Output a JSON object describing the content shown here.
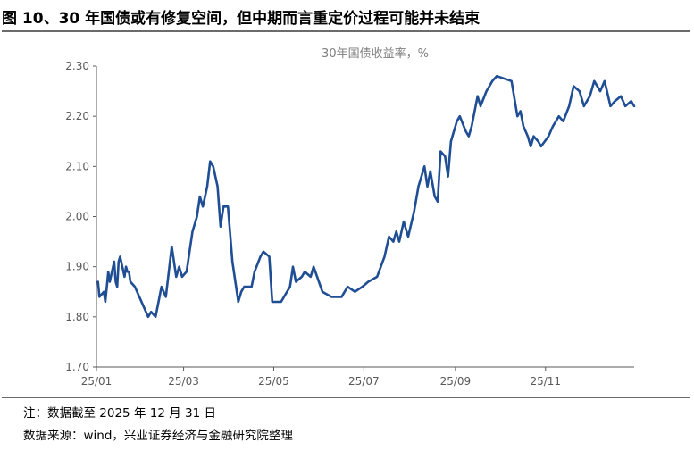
{
  "header": {
    "title": "图 10、30 年国债或有修复空间，但中期而言重定价过程可能并未结束"
  },
  "footer": {
    "note": "注：数据截至 2025 年 12 月 31 日",
    "source": "数据来源：wind，兴业证券经济与金融研究院整理"
  },
  "colors": {
    "line": "#1f4e94",
    "axis": "#595959",
    "text": "#595959",
    "legend_text": "#7f7f7f"
  },
  "chart_data": {
    "type": "line",
    "title": "",
    "legend": [
      "30年国债收益率，%"
    ],
    "legend_position": "top-center",
    "grid": false,
    "xlabel": "",
    "ylabel": "",
    "ylim": [
      1.7,
      2.3
    ],
    "yticks": [
      "1.70",
      "1.80",
      "1.90",
      "2.00",
      "2.10",
      "2.20",
      "2.30"
    ],
    "xticks": [
      "25/01",
      "25/03",
      "25/05",
      "25/07",
      "25/09",
      "25/11"
    ],
    "xlim": [
      "2025-01-01",
      "2025-12-31"
    ],
    "series": [
      {
        "name": "30年国债收益率，%",
        "x": [
          "2025-01-02",
          "2025-01-03",
          "2025-01-06",
          "2025-01-07",
          "2025-01-08",
          "2025-01-09",
          "2025-01-10",
          "2025-01-13",
          "2025-01-14",
          "2025-01-15",
          "2025-01-16",
          "2025-01-17",
          "2025-01-20",
          "2025-01-21",
          "2025-01-22",
          "2025-01-23",
          "2025-01-24",
          "2025-01-27",
          "2025-02-05",
          "2025-02-07",
          "2025-02-10",
          "2025-02-12",
          "2025-02-14",
          "2025-02-17",
          "2025-02-19",
          "2025-02-21",
          "2025-02-24",
          "2025-02-26",
          "2025-02-28",
          "2025-03-03",
          "2025-03-05",
          "2025-03-07",
          "2025-03-10",
          "2025-03-12",
          "2025-03-14",
          "2025-03-17",
          "2025-03-19",
          "2025-03-21",
          "2025-03-24",
          "2025-03-26",
          "2025-03-28",
          "2025-03-31",
          "2025-04-03",
          "2025-04-07",
          "2025-04-09",
          "2025-04-11",
          "2025-04-14",
          "2025-04-16",
          "2025-04-18",
          "2025-04-22",
          "2025-04-24",
          "2025-04-28",
          "2025-04-30",
          "2025-05-06",
          "2025-05-08",
          "2025-05-12",
          "2025-05-14",
          "2025-05-16",
          "2025-05-20",
          "2025-05-22",
          "2025-05-26",
          "2025-05-28",
          "2025-06-03",
          "2025-06-09",
          "2025-06-16",
          "2025-06-20",
          "2025-06-25",
          "2025-06-30",
          "2025-07-04",
          "2025-07-10",
          "2025-07-15",
          "2025-07-18",
          "2025-07-21",
          "2025-07-23",
          "2025-07-25",
          "2025-07-28",
          "2025-07-31",
          "2025-08-04",
          "2025-08-07",
          "2025-08-11",
          "2025-08-13",
          "2025-08-15",
          "2025-08-18",
          "2025-08-20",
          "2025-08-22",
          "2025-08-25",
          "2025-08-27",
          "2025-08-29",
          "2025-09-02",
          "2025-09-04",
          "2025-09-08",
          "2025-09-10",
          "2025-09-12",
          "2025-09-16",
          "2025-09-18",
          "2025-09-22",
          "2025-09-24",
          "2025-09-26",
          "2025-09-29",
          "2025-10-09",
          "2025-10-13",
          "2025-10-15",
          "2025-10-17",
          "2025-10-20",
          "2025-10-22",
          "2025-10-24",
          "2025-10-27",
          "2025-10-29",
          "2025-11-03",
          "2025-11-06",
          "2025-11-10",
          "2025-11-13",
          "2025-11-17",
          "2025-11-20",
          "2025-11-24",
          "2025-11-27",
          "2025-12-01",
          "2025-12-04",
          "2025-12-08",
          "2025-12-11",
          "2025-12-15",
          "2025-12-18",
          "2025-12-22",
          "2025-12-25",
          "2025-12-29",
          "2025-12-31"
        ],
        "y": [
          1.87,
          1.84,
          1.85,
          1.83,
          1.86,
          1.89,
          1.87,
          1.91,
          1.87,
          1.86,
          1.91,
          1.92,
          1.88,
          1.9,
          1.89,
          1.89,
          1.87,
          1.86,
          1.8,
          1.81,
          1.8,
          1.83,
          1.86,
          1.84,
          1.89,
          1.94,
          1.88,
          1.9,
          1.88,
          1.89,
          1.93,
          1.97,
          2.0,
          2.04,
          2.02,
          2.06,
          2.11,
          2.1,
          2.06,
          1.98,
          2.02,
          2.02,
          1.91,
          1.83,
          1.85,
          1.86,
          1.86,
          1.86,
          1.89,
          1.92,
          1.93,
          1.92,
          1.83,
          1.83,
          1.84,
          1.86,
          1.9,
          1.87,
          1.88,
          1.89,
          1.88,
          1.9,
          1.85,
          1.84,
          1.84,
          1.86,
          1.85,
          1.86,
          1.87,
          1.88,
          1.92,
          1.96,
          1.95,
          1.97,
          1.95,
          1.99,
          1.96,
          2.01,
          2.06,
          2.1,
          2.06,
          2.09,
          2.04,
          2.03,
          2.13,
          2.12,
          2.08,
          2.15,
          2.19,
          2.2,
          2.17,
          2.16,
          2.18,
          2.24,
          2.22,
          2.25,
          2.26,
          2.27,
          2.28,
          2.27,
          2.2,
          2.21,
          2.18,
          2.16,
          2.14,
          2.16,
          2.15,
          2.14,
          2.16,
          2.18,
          2.2,
          2.19,
          2.22,
          2.26,
          2.25,
          2.22,
          2.24,
          2.27,
          2.25,
          2.27,
          2.22,
          2.23,
          2.24,
          2.22,
          2.23,
          2.22
        ]
      }
    ]
  }
}
